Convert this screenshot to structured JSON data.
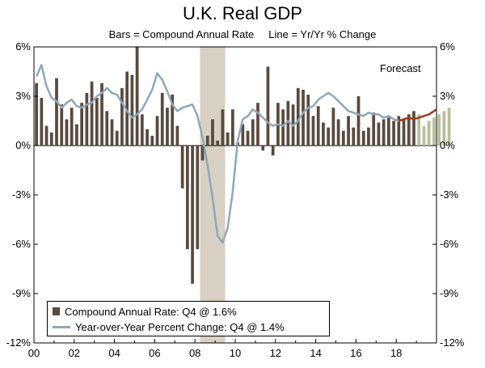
{
  "title": "U.K. Real GDP",
  "subtitle": "Bars = Compound Annual Rate     Line = Yr/Yr % Change",
  "forecast_label": "Forecast",
  "legend": {
    "bar_label": "Compound Annual Rate: Q4 @ 1.6%",
    "line_label": "Year-over-Year Percent Change: Q4 @ 1.4%"
  },
  "colors": {
    "bar_actual": "#5a4a3e",
    "bar_forecast": "#b6bf98",
    "line_actual": "#8ea7b9",
    "line_forecast": "#9e3c1c",
    "recession": "#d8d0c2"
  },
  "chart_data": {
    "type": "bar",
    "title": "U.K. Real GDP",
    "subtitle": "Bars = Compound Annual Rate     Line = Yr/Yr % Change",
    "x_tick_labels": [
      "00",
      "02",
      "04",
      "06",
      "08",
      "10",
      "12",
      "14",
      "16",
      "18"
    ],
    "y_tick_labels_left": [
      "6%",
      "3%",
      "0%",
      "-3%",
      "-6%",
      "-9%",
      "-12%"
    ],
    "y_tick_labels_right": [
      "6%",
      "3%",
      "0%",
      "-3%",
      "-6%",
      "-9%",
      "-12%"
    ],
    "ylim": [
      -12,
      6
    ],
    "xlim": [
      2000,
      2020
    ],
    "recession_shading": [
      [
        2008.25,
        2009.5
      ]
    ],
    "bars": {
      "quarters_start": "2000Q1",
      "forecast_start_index": 76,
      "values": [
        3.8,
        2.9,
        1.2,
        0.8,
        4.1,
        2.5,
        1.6,
        2.3,
        1.3,
        2.6,
        3.2,
        3.9,
        2.9,
        3.8,
        2.1,
        1.6,
        0.9,
        3.5,
        4.5,
        4.3,
        6.0,
        1.9,
        1.0,
        0.6,
        1.8,
        3.2,
        2.3,
        3.1,
        1.2,
        -2.6,
        -6.3,
        -8.4,
        -6.3,
        -0.9,
        0.6,
        1.6,
        0.3,
        2.2,
        0.8,
        2.2,
        0.2,
        1.3,
        0.9,
        1.6,
        2.6,
        -0.3,
        4.8,
        -0.6,
        2.6,
        2.2,
        2.7,
        2.5,
        3.5,
        3.4,
        3.1,
        1.8,
        2.4,
        1.4,
        1.1,
        2.3,
        1.6,
        0.9,
        1.8,
        1.1,
        3.0,
        0.9,
        1.1,
        2.0,
        1.4,
        1.6,
        1.7,
        1.5,
        1.8,
        1.6,
        1.9,
        2.1,
        1.9,
        1.2,
        1.5,
        1.7,
        1.9,
        2.1,
        2.3
      ]
    },
    "line": {
      "name": "Year-over-Year Percent Change",
      "points": [
        [
          2000.125,
          4.2
        ],
        [
          2000.375,
          4.9
        ],
        [
          2000.625,
          3.6
        ],
        [
          2000.875,
          2.9
        ],
        [
          2001.125,
          2.7
        ],
        [
          2001.375,
          2.3
        ],
        [
          2001.625,
          2.6
        ],
        [
          2001.875,
          2.8
        ],
        [
          2002.125,
          2.4
        ],
        [
          2002.375,
          2.3
        ],
        [
          2002.625,
          2.5
        ],
        [
          2002.875,
          2.6
        ],
        [
          2003.125,
          3.0
        ],
        [
          2003.375,
          3.2
        ],
        [
          2003.625,
          3.5
        ],
        [
          2003.875,
          3.2
        ],
        [
          2004.125,
          3.1
        ],
        [
          2004.375,
          2.6
        ],
        [
          2004.625,
          2.1
        ],
        [
          2004.875,
          1.7
        ],
        [
          2005.125,
          1.9
        ],
        [
          2005.375,
          2.2
        ],
        [
          2005.625,
          2.8
        ],
        [
          2005.875,
          3.4
        ],
        [
          2006.125,
          4.4
        ],
        [
          2006.375,
          4.0
        ],
        [
          2006.625,
          3.3
        ],
        [
          2006.875,
          2.5
        ],
        [
          2007.125,
          2.1
        ],
        [
          2007.375,
          2.3
        ],
        [
          2007.625,
          2.4
        ],
        [
          2007.875,
          2.5
        ],
        [
          2008.125,
          1.8
        ],
        [
          2008.375,
          0.5
        ],
        [
          2008.625,
          -1.2
        ],
        [
          2008.875,
          -3.2
        ],
        [
          2009.125,
          -5.5
        ],
        [
          2009.375,
          -5.9
        ],
        [
          2009.625,
          -5.0
        ],
        [
          2009.875,
          -2.8
        ],
        [
          2010.125,
          0.3
        ],
        [
          2010.375,
          1.6
        ],
        [
          2010.625,
          1.8
        ],
        [
          2010.875,
          2.2
        ],
        [
          2011.125,
          2.0
        ],
        [
          2011.375,
          1.7
        ],
        [
          2011.625,
          1.4
        ],
        [
          2011.875,
          1.2
        ],
        [
          2012.125,
          1.3
        ],
        [
          2012.375,
          1.2
        ],
        [
          2012.625,
          1.5
        ],
        [
          2012.875,
          1.2
        ],
        [
          2013.125,
          1.5
        ],
        [
          2013.375,
          2.0
        ],
        [
          2013.625,
          2.3
        ],
        [
          2013.875,
          2.4
        ],
        [
          2014.125,
          2.8
        ],
        [
          2014.375,
          3.0
        ],
        [
          2014.625,
          3.2
        ],
        [
          2014.875,
          3.0
        ],
        [
          2015.125,
          2.7
        ],
        [
          2015.375,
          2.4
        ],
        [
          2015.625,
          2.1
        ],
        [
          2015.875,
          2.0
        ],
        [
          2016.125,
          1.9
        ],
        [
          2016.375,
          1.8
        ],
        [
          2016.625,
          2.0
        ],
        [
          2016.875,
          1.9
        ],
        [
          2017.125,
          1.9
        ],
        [
          2017.375,
          1.7
        ],
        [
          2017.625,
          1.8
        ],
        [
          2017.875,
          1.6
        ],
        [
          2018.125,
          1.5
        ]
      ],
      "forecast_points": [
        [
          2018.125,
          1.5
        ],
        [
          2018.375,
          1.6
        ],
        [
          2018.625,
          1.7
        ],
        [
          2018.875,
          1.6
        ],
        [
          2019.125,
          1.7
        ],
        [
          2019.375,
          1.8
        ],
        [
          2019.625,
          1.9
        ],
        [
          2019.875,
          2.1
        ],
        [
          2020.0,
          2.2
        ]
      ]
    }
  }
}
